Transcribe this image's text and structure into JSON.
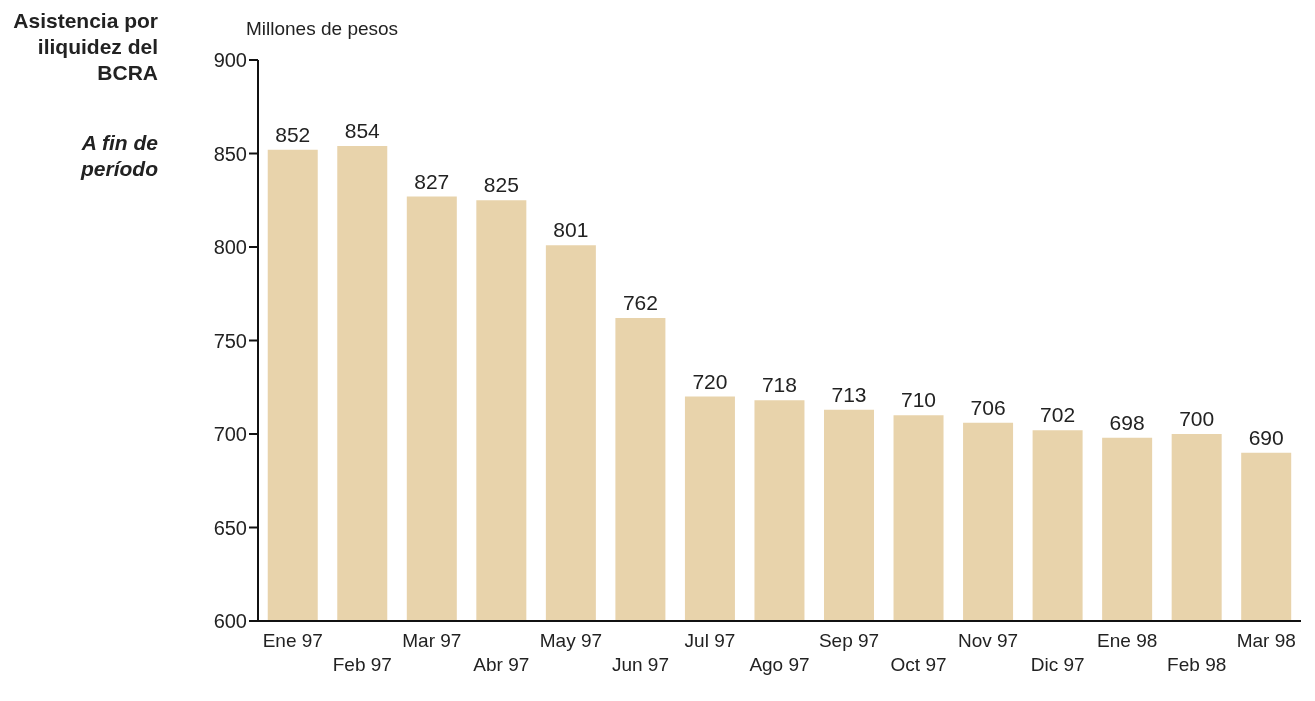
{
  "chart_data": {
    "type": "bar",
    "title": "Asistencia por iliquidez del BCRA",
    "subtitle": "A fin de período",
    "ylabel": "Millones de pesos",
    "categories": [
      "Ene 97",
      "Feb 97",
      "Mar 97",
      "Abr 97",
      "May 97",
      "Jun 97",
      "Jul 97",
      "Ago 97",
      "Sep 97",
      "Oct 97",
      "Nov 97",
      "Dic 97",
      "Ene 98",
      "Feb 98",
      "Mar 98"
    ],
    "values": [
      852,
      854,
      827,
      825,
      801,
      762,
      720,
      718,
      713,
      710,
      706,
      702,
      698,
      700,
      690
    ],
    "color": "#e8d3ab",
    "ylim": [
      600,
      900
    ],
    "yticks": [
      600,
      650,
      700,
      750,
      800,
      850,
      900
    ],
    "data_labels": true,
    "grid": false,
    "legend": false
  }
}
